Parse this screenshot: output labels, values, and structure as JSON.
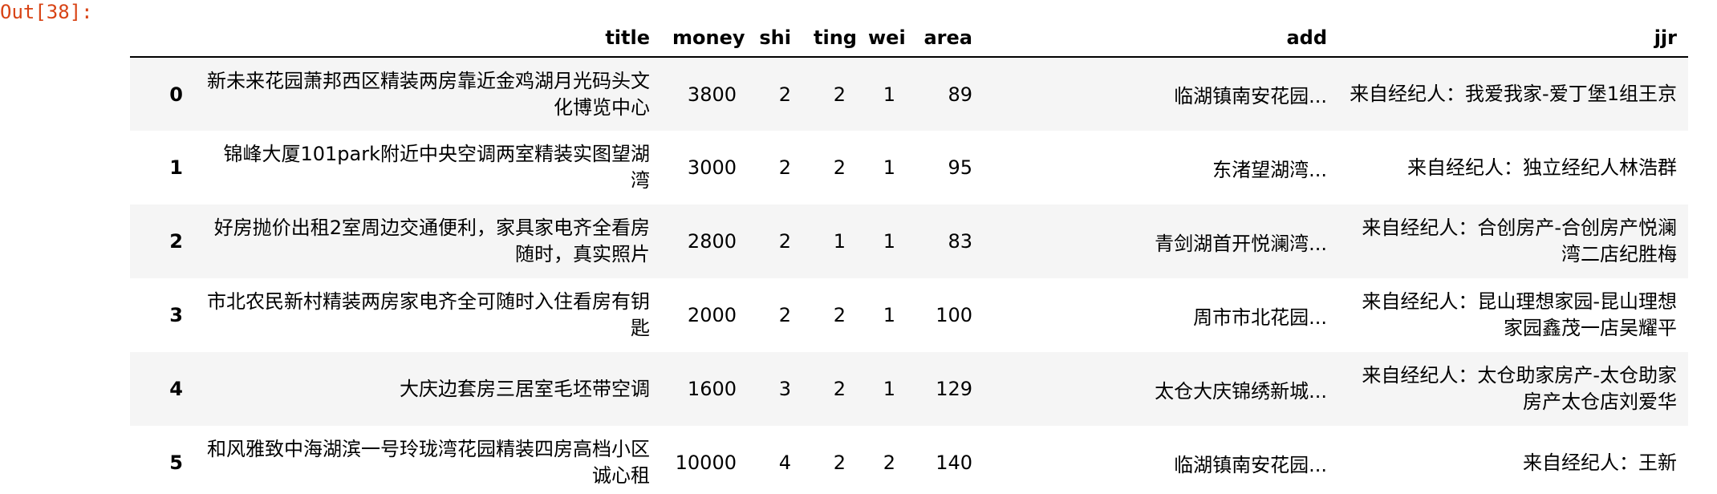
{
  "prompt": "Out[38]:",
  "table": {
    "index_header": "",
    "columns": [
      "title",
      "money",
      "shi",
      "ting",
      "wei",
      "area",
      "add",
      "jjr"
    ],
    "rows": [
      {
        "index": "0",
        "title": "新未来花园萧邦西区精装两房靠近金鸡湖月光码头文化博览中心",
        "money": "3800",
        "shi": "2",
        "ting": "2",
        "wei": "1",
        "area": "89",
        "add": "临湖镇南安花园...",
        "jjr": "来自经纪人：我爱我家-爱丁堡1组王京"
      },
      {
        "index": "1",
        "title": "锦峰大厦101park附近中央空调两室精装实图望湖湾",
        "money": "3000",
        "shi": "2",
        "ting": "2",
        "wei": "1",
        "area": "95",
        "add": "东渚望湖湾...",
        "jjr": "来自经纪人：独立经纪人林浩群"
      },
      {
        "index": "2",
        "title": "好房抛价出租2室周边交通便利，家具家电齐全看房随时，真实照片",
        "money": "2800",
        "shi": "2",
        "ting": "1",
        "wei": "1",
        "area": "83",
        "add": "青剑湖首开悦澜湾...",
        "jjr": "来自经纪人：合创房产-合创房产悦澜湾二店纪胜梅"
      },
      {
        "index": "3",
        "title": "市北农民新村精装两房家电齐全可随时入住看房有钥匙",
        "money": "2000",
        "shi": "2",
        "ting": "2",
        "wei": "1",
        "area": "100",
        "add": "周市市北花园...",
        "jjr": "来自经纪人：昆山理想家园-昆山理想家园鑫茂一店吴耀平"
      },
      {
        "index": "4",
        "title": "大庆边套房三居室毛坯带空调",
        "money": "1600",
        "shi": "3",
        "ting": "2",
        "wei": "1",
        "area": "129",
        "add": "太仓大庆锦绣新城...",
        "jjr": "来自经纪人：太仓助家房产-太仓助家房产太仓店刘爱华"
      },
      {
        "index": "5",
        "title": "和风雅致中海湖滨一号玲珑湾花园精装四房高档小区诚心租",
        "money": "10000",
        "shi": "4",
        "ting": "2",
        "wei": "2",
        "area": "140",
        "add": "临湖镇南安花园...",
        "jjr": "来自经纪人：王新"
      }
    ]
  }
}
